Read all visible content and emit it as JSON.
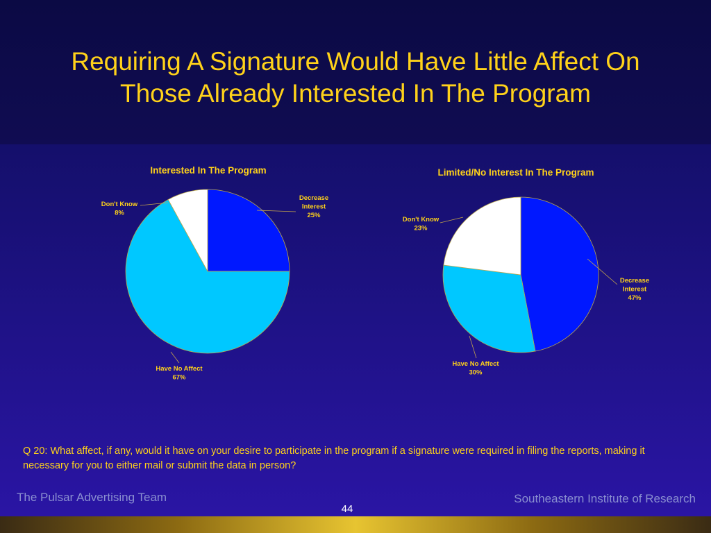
{
  "slide": {
    "title_line1": "Requiring A Signature Would Have Little Affect On",
    "title_line2": "Those Already Interested In The Program",
    "question": "Q 20:  What affect, if any, would it have on your desire to participate in the program if a signature were required in filing the reports, making it necessary for you to either mail or submit the data in person?",
    "footer_left": "The Pulsar Advertising Team",
    "footer_right": "Southeastern Institute of Research",
    "page_number": "44"
  },
  "colors": {
    "title": "#ffd21a",
    "decrease_interest": "#0018ff",
    "have_no_affect": "#00c8ff",
    "dont_know": "#ffffff"
  },
  "chart_data": [
    {
      "type": "pie",
      "title": "Interested In The Program",
      "slices": [
        {
          "label_lines": [
            "Decrease",
            "Interest",
            "25%"
          ],
          "value": 25,
          "color": "#0018ff"
        },
        {
          "label_lines": [
            "Have No Affect",
            "67%"
          ],
          "value": 67,
          "color": "#00c8ff"
        },
        {
          "label_lines": [
            "Don't Know",
            "8%"
          ],
          "value": 8,
          "color": "#ffffff"
        }
      ]
    },
    {
      "type": "pie",
      "title": "Limited/No Interest In The Program",
      "slices": [
        {
          "label_lines": [
            "Decrease",
            "Interest",
            "47%"
          ],
          "value": 47,
          "color": "#0018ff"
        },
        {
          "label_lines": [
            "Have No Affect",
            "30%"
          ],
          "value": 30,
          "color": "#00c8ff"
        },
        {
          "label_lines": [
            "Don't Know",
            "23%"
          ],
          "value": 23,
          "color": "#ffffff"
        }
      ]
    }
  ]
}
